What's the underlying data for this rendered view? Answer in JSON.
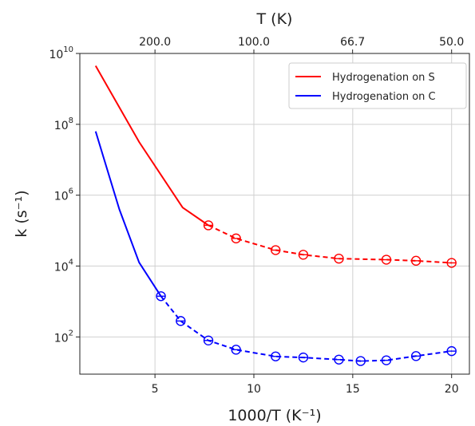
{
  "chart_data": {
    "type": "line",
    "x_scale": "linear",
    "y_scale": "log",
    "xlabel": "1000/T (K⁻¹)",
    "ylabel": "k (s⁻¹)",
    "top_axis_label": "T (K)",
    "xlim": [
      1.2,
      20.9
    ],
    "ylim_exp": [
      0.95,
      10.0
    ],
    "x_ticks": [
      5,
      10,
      15,
      20
    ],
    "x_tick_labels": [
      "5",
      "10",
      "15",
      "20"
    ],
    "y_ticks_exp": [
      2,
      4,
      6,
      8,
      10
    ],
    "y_tick_labels": [
      {
        "base": "10",
        "exp": "2"
      },
      {
        "base": "10",
        "exp": "4"
      },
      {
        "base": "10",
        "exp": "6"
      },
      {
        "base": "10",
        "exp": "8"
      },
      {
        "base": "10",
        "exp": "10"
      }
    ],
    "top_ticks_T": [
      200.0,
      100.0,
      66.7,
      50.0
    ],
    "top_tick_labels": [
      "200.0",
      "100.0",
      "66.7",
      "50.0"
    ],
    "grid": true,
    "legend_position": "top-right",
    "series": [
      {
        "name": "Hydrogenation on S",
        "color": "#ff0000",
        "solid": {
          "x": [
            2.0,
            4.2,
            6.4,
            7.7
          ],
          "log_y": [
            9.65,
            7.5,
            5.65,
            5.15
          ]
        },
        "dashed": {
          "x": [
            7.7,
            9.1,
            11.1,
            12.5,
            14.3,
            16.7,
            18.2,
            20.0
          ],
          "log_y": [
            5.15,
            4.78,
            4.45,
            4.32,
            4.21,
            4.18,
            4.15,
            4.09
          ]
        },
        "markers": {
          "x": [
            7.7,
            9.1,
            11.1,
            12.5,
            14.3,
            16.7,
            18.2,
            20.0
          ],
          "log_y": [
            5.15,
            4.78,
            4.45,
            4.32,
            4.21,
            4.18,
            4.15,
            4.09
          ]
        }
      },
      {
        "name": "Hydrogenation on C",
        "color": "#0000ff",
        "solid": {
          "x": [
            2.0,
            3.2,
            4.2,
            5.3
          ],
          "log_y": [
            7.8,
            5.6,
            4.1,
            3.15
          ]
        },
        "dashed": {
          "x": [
            5.3,
            6.3,
            7.7,
            9.1,
            11.1,
            12.5,
            14.3,
            15.4,
            16.7,
            18.2,
            20.0
          ],
          "log_y": [
            3.15,
            2.45,
            1.9,
            1.64,
            1.45,
            1.42,
            1.36,
            1.32,
            1.34,
            1.46,
            1.6
          ]
        },
        "markers": {
          "x": [
            5.3,
            6.3,
            7.7,
            9.1,
            11.1,
            12.5,
            14.3,
            15.4,
            16.7,
            18.2,
            20.0
          ],
          "log_y": [
            3.15,
            2.45,
            1.9,
            1.64,
            1.45,
            1.42,
            1.36,
            1.32,
            1.34,
            1.46,
            1.6
          ]
        }
      }
    ]
  }
}
